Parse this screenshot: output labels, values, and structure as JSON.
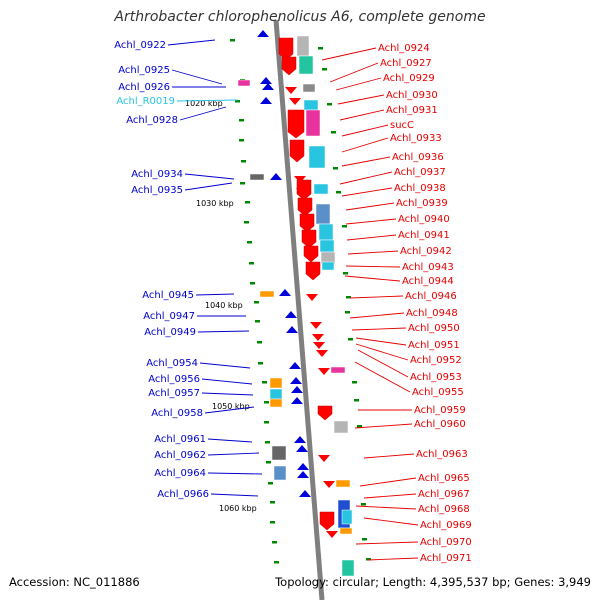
{
  "title": "Arthrobacter chlorophenolicus A6, complete genome",
  "footer": {
    "accession": "Accession: NC_011886",
    "topology": "Topology: circular; Length: 4,395,537 bp; Genes: 3,949"
  },
  "colors": {
    "backbone": "#7f7f7f",
    "forward_gene": "#0000dd",
    "reverse_gene": "#ff0000",
    "left_label": "#0000cc",
    "right_label": "#e60000",
    "rna_label": "#29c4e0",
    "tick": "#008800"
  },
  "scale_marks": [
    "1020 kbp",
    "1030 kbp",
    "1040 kbp",
    "1050 kbp",
    "1060 kbp"
  ],
  "left_labels": [
    {
      "text": "Achl_0922",
      "type": "gene"
    },
    {
      "text": "Achl_0925",
      "type": "gene"
    },
    {
      "text": "Achl_0926",
      "type": "gene"
    },
    {
      "text": "Achl_R0019",
      "type": "rna"
    },
    {
      "text": "Achl_0928",
      "type": "gene"
    },
    {
      "text": "Achl_0934",
      "type": "gene"
    },
    {
      "text": "Achl_0935",
      "type": "gene"
    },
    {
      "text": "Achl_0945",
      "type": "gene"
    },
    {
      "text": "Achl_0947",
      "type": "gene"
    },
    {
      "text": "Achl_0949",
      "type": "gene"
    },
    {
      "text": "Achl_0954",
      "type": "gene"
    },
    {
      "text": "Achl_0956",
      "type": "gene"
    },
    {
      "text": "Achl_0957",
      "type": "gene"
    },
    {
      "text": "Achl_0958",
      "type": "gene"
    },
    {
      "text": "Achl_0961",
      "type": "gene"
    },
    {
      "text": "Achl_0962",
      "type": "gene"
    },
    {
      "text": "Achl_0964",
      "type": "gene"
    },
    {
      "text": "Achl_0966",
      "type": "gene"
    }
  ],
  "right_labels": [
    "Achl_0924",
    "Achl_0927",
    "Achl_0929",
    "Achl_0930",
    "Achl_0931",
    "sucC",
    "Achl_0933",
    "Achl_0936",
    "Achl_0937",
    "Achl_0938",
    "Achl_0939",
    "Achl_0940",
    "Achl_0941",
    "Achl_0942",
    "Achl_0943",
    "Achl_0944",
    "Achl_0946",
    "Achl_0948",
    "Achl_0950",
    "Achl_0951",
    "Achl_0952",
    "Achl_0953",
    "Achl_0955",
    "Achl_0959",
    "Achl_0960",
    "Achl_0963",
    "Achl_0965",
    "Achl_0967",
    "Achl_0968",
    "Achl_0969",
    "Achl_0970",
    "Achl_0971"
  ]
}
